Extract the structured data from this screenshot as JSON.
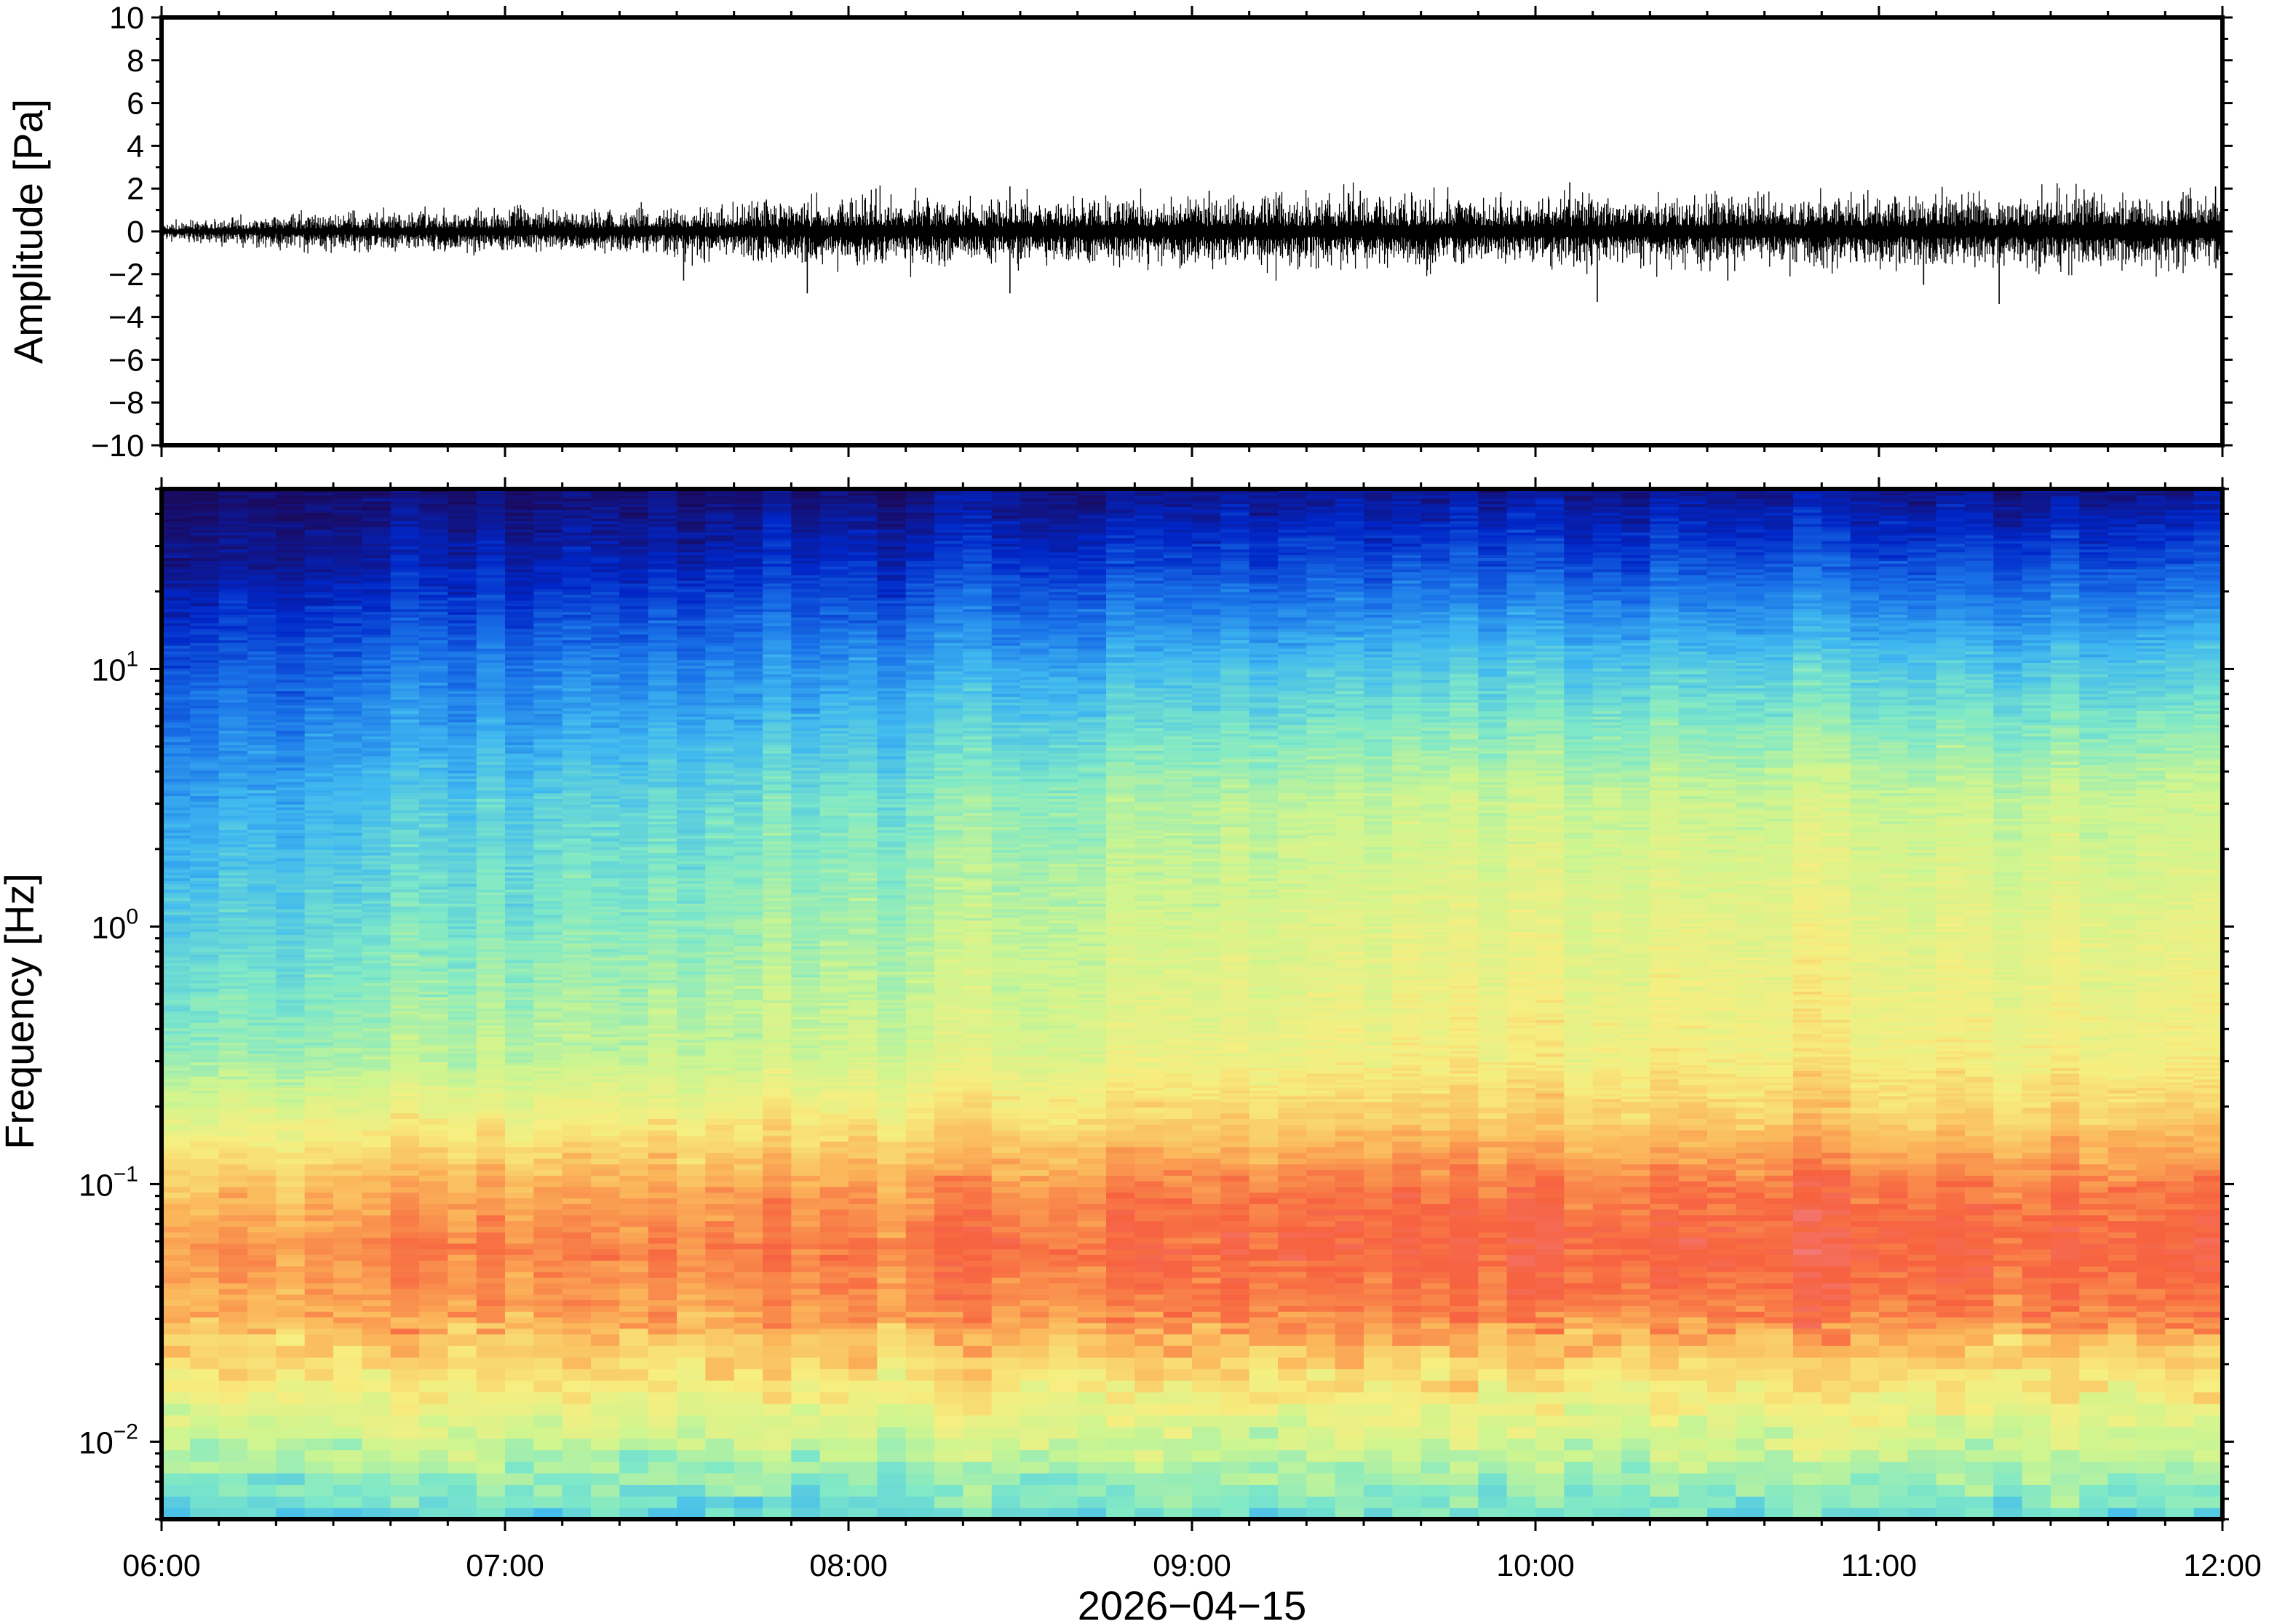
{
  "chart_data": [
    {
      "type": "line",
      "ylabel": "Amplitude [Pa]",
      "ylim": [
        -10,
        10
      ],
      "yticks": [
        "10",
        "8",
        "6",
        "4",
        "2",
        "0",
        "−2",
        "−4",
        "−6",
        "−8",
        "−10"
      ],
      "ytick_values": [
        10,
        8,
        6,
        4,
        2,
        0,
        -2,
        -4,
        -6,
        -8,
        -10
      ],
      "xlim": [
        "06:00",
        "12:00"
      ],
      "series": [
        {
          "color": "#000000",
          "envelope_note_hours": [
            6.0,
            6.5,
            7.0,
            7.5,
            8.0,
            8.5,
            9.0,
            9.5,
            10.0,
            10.5,
            11.0,
            11.5,
            12.0
          ],
          "envelope_pa": [
            0.4,
            0.9,
            1.0,
            1.1,
            1.6,
            1.5,
            1.6,
            1.6,
            1.6,
            1.6,
            1.6,
            1.7,
            1.8
          ]
        }
      ],
      "spikes": [
        {
          "t": 7.52,
          "v": -2.3
        },
        {
          "t": 7.88,
          "v": -2.9
        },
        {
          "t": 8.08,
          "v": 2.0
        },
        {
          "t": 8.47,
          "v": 2.1
        },
        {
          "t": 8.47,
          "v": -2.9
        },
        {
          "t": 9.05,
          "v": 1.9
        },
        {
          "t": 9.49,
          "v": 1.9
        },
        {
          "t": 10.18,
          "v": -3.3
        },
        {
          "t": 10.1,
          "v": 2.3
        },
        {
          "t": 10.56,
          "v": -2.3
        },
        {
          "t": 11.13,
          "v": -2.5
        },
        {
          "t": 11.35,
          "v": -3.4
        },
        {
          "t": 11.98,
          "v": 2.1
        }
      ]
    },
    {
      "type": "heatmap",
      "ylabel": "Frequency [Hz]",
      "yscale": "log",
      "ylim": [
        0.005,
        50
      ],
      "yticks": [
        {
          "base": "10",
          "exp": "1",
          "value": 10
        },
        {
          "base": "10",
          "exp": "0",
          "value": 1
        },
        {
          "base": "10",
          "exp": "−1",
          "value": 0.1
        },
        {
          "base": "10",
          "exp": "−2",
          "value": 0.01
        }
      ],
      "xlabel": "2026−04−15",
      "xlim": [
        "06:00",
        "12:00"
      ],
      "xticks": [
        "06:00",
        "07:00",
        "08:00",
        "09:00",
        "10:00",
        "11:00",
        "12:00"
      ],
      "xtick_hours": [
        6,
        7,
        8,
        9,
        10,
        11,
        12
      ],
      "colormap": [
        "#1a0a5e",
        "#0026c7",
        "#1a74e8",
        "#3fb8f0",
        "#7ee8c8",
        "#cdf590",
        "#f7ee80",
        "#fbb65a",
        "#f7623f",
        "#f28088"
      ],
      "power_profile": {
        "log10_freq": [
          -2.3,
          -2.0,
          -1.7,
          -1.5,
          -1.25,
          -1.0,
          -0.75,
          -0.5,
          0.0,
          0.5,
          1.0,
          1.4,
          1.7
        ],
        "level_start": [
          0.38,
          0.55,
          0.7,
          0.78,
          0.82,
          0.75,
          0.62,
          0.48,
          0.38,
          0.3,
          0.18,
          0.06,
          0.0
        ],
        "level_end": [
          0.42,
          0.57,
          0.72,
          0.85,
          0.9,
          0.86,
          0.74,
          0.66,
          0.62,
          0.56,
          0.38,
          0.18,
          0.05
        ]
      }
    }
  ]
}
